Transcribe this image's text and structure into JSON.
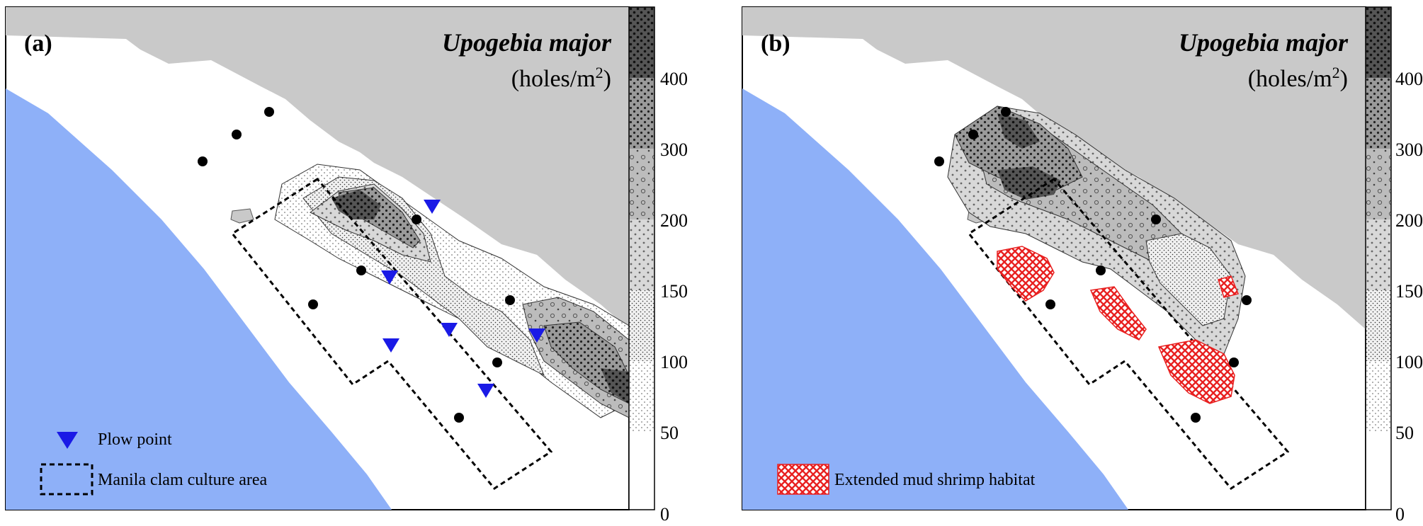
{
  "panels": [
    {
      "id": "a",
      "label": "(a)"
    },
    {
      "id": "b",
      "label": "(b)"
    }
  ],
  "title": {
    "species": "Upogebia major",
    "unit_prefix": "(holes/m",
    "unit_sup": "2",
    "unit_suffix": ")"
  },
  "colorbar": {
    "ticks": [
      "0",
      "50",
      "100",
      "150",
      "200",
      "300",
      "400"
    ],
    "class_fills": [
      "white",
      "sparse-dots",
      "dense-dots",
      "light-gray-dots",
      "gray-circles",
      "gray-dense-dots",
      "dark-dots"
    ]
  },
  "legend_a": {
    "plow_point": "Plow point",
    "culture_area": "Manila clam culture area"
  },
  "legend_b": {
    "extended_habitat": "Extended mud shrimp habitat"
  },
  "colors": {
    "sea": "#8eb0f8",
    "land": "#c9c9c9",
    "plow_marker": "#1a1ae6",
    "habitat_hatch": "#e82020",
    "sample_point": "#000000"
  },
  "icons": {
    "plow": "triangle-down-icon",
    "sample": "circle-point-icon",
    "culture": "dashed-rectangle-icon",
    "habitat": "red-crosshatch-icon"
  }
}
